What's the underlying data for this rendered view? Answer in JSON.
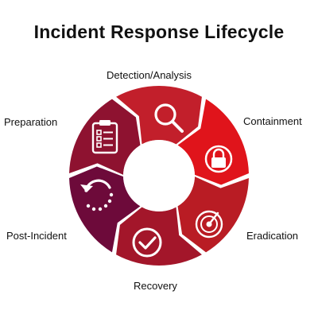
{
  "title": "Incident Response Lifecycle",
  "colors": {
    "detection": "#c21f2b",
    "containment": "#e0141b",
    "eradication": "#b91c24",
    "recovery": "#a3162a",
    "post_incident": "#6d0a3a",
    "preparation": "#8e1230",
    "icon": "#ffffff",
    "center": "#ffffff"
  },
  "phases": [
    {
      "key": "detection",
      "label": "Detection/Analysis",
      "icon": "magnifier-icon"
    },
    {
      "key": "containment",
      "label": "Containment",
      "icon": "lock-icon"
    },
    {
      "key": "eradication",
      "label": "Eradication",
      "icon": "radar-icon"
    },
    {
      "key": "recovery",
      "label": "Recovery",
      "icon": "checkmark-icon"
    },
    {
      "key": "post_incident",
      "label": "Post-Incident",
      "icon": "restore-icon"
    },
    {
      "key": "preparation",
      "label": "Preparation",
      "icon": "clipboard-checklist-icon"
    }
  ]
}
